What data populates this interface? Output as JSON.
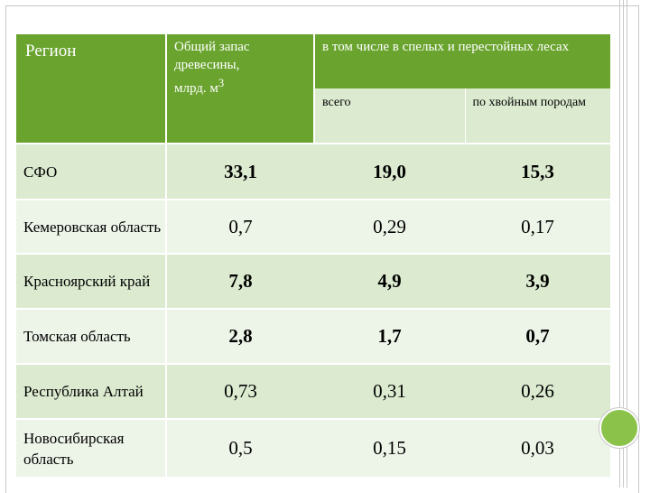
{
  "table": {
    "headers": {
      "region": "Регион",
      "total_line1": "Общий запас",
      "total_line2": "древесины,",
      "total_line3": "млрд. м",
      "total_sup": "3",
      "group": "в том числе в спелых и перестойных лесах",
      "sub_all": "всего",
      "sub_conifer": "по хвойным породам"
    },
    "rows": [
      {
        "region": "СФО",
        "total": "33,1",
        "all": "19,0",
        "conifer": "15,3"
      },
      {
        "region": "Кемеровская область",
        "total": "0,7",
        "all": "0,29",
        "conifer": "0,17"
      },
      {
        "region": "Красноярский край",
        "total": "7,8",
        "all": "4,9",
        "conifer": "3,9"
      },
      {
        "region": "Томская область",
        "total": "2,8",
        "all": "1,7",
        "conifer": "0,7"
      },
      {
        "region": "Республика Алтай",
        "total": "0,73",
        "all": "0,31",
        "conifer": "0,26"
      },
      {
        "region": "Новосибирская область",
        "total": "0,5",
        "all": "0,15",
        "conifer": "0,03"
      }
    ]
  },
  "colors": {
    "header_dark": "#6aa42f",
    "header_light": "#dcebd0",
    "row_alt": "#edf4e8",
    "accent_circle": "#8bc34a"
  }
}
